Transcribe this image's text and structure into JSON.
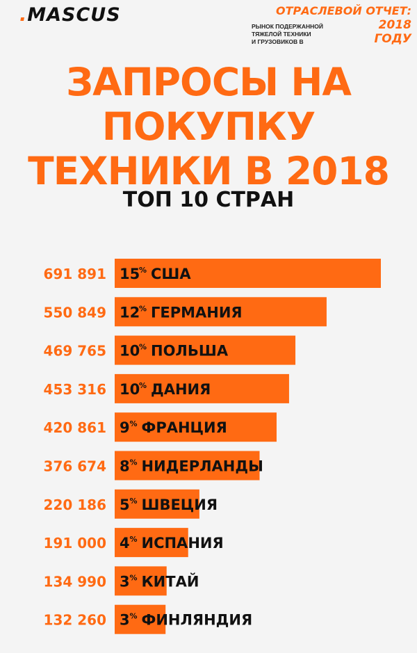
{
  "header": {
    "logo_dot": ".",
    "logo_text": "MASCUS",
    "report_title": "ОТРАСЛЕВОЙ ОТЧЕТ:",
    "report_line1": "РЫНОК ПОДЕРЖАННОЙ ТЯЖЕЛОЙ ТЕХНИКИ",
    "report_line2": "И ГРУЗОВИКОВ В",
    "report_year": "2018 ГОДУ"
  },
  "headline": {
    "line1": "ЗАПРОСЫ НА",
    "line2": "ПОКУПКУ",
    "line3": "ТЕХНИКИ В 2018",
    "subtitle": "ТОП 10 СТРАН"
  },
  "colors": {
    "accent": "#ff6a13",
    "text": "#111111",
    "background": "#f4f4f4"
  },
  "chart_data": {
    "type": "bar",
    "orientation": "horizontal",
    "title": "ЗАПРОСЫ НА ПОКУПКУ ТЕХНИКИ В 2018",
    "subtitle": "ТОП 10 СТРАН",
    "percent_sign": "%",
    "categories": [
      "США",
      "ГЕРМАНИЯ",
      "ПОЛЬША",
      "ДАНИЯ",
      "ФРАНЦИЯ",
      "НИДЕРЛАНДЫ",
      "ШВЕЦИЯ",
      "ИСПАНИЯ",
      "КИТАЙ",
      "ФИНЛЯНДИЯ"
    ],
    "values": [
      691891,
      550849,
      469765,
      453316,
      420861,
      376674,
      220186,
      191000,
      134990,
      132260
    ],
    "value_labels": [
      "691 891",
      "550 849",
      "469 765",
      "453 316",
      "420 861",
      "376 674",
      "220 186",
      "191 000",
      "134 990",
      "132 260"
    ],
    "percents": [
      15,
      12,
      10,
      10,
      9,
      8,
      5,
      4,
      3,
      3
    ],
    "bar_color": "#ff6a13"
  }
}
